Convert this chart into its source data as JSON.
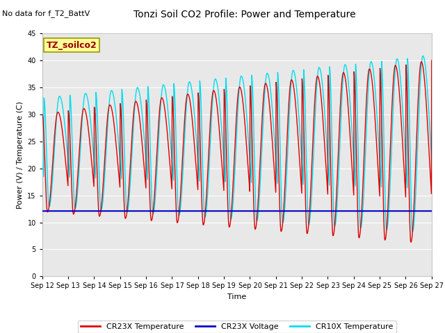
{
  "title": "Tonzi Soil CO2 Profile: Power and Temperature",
  "subtitle": "No data for f_T2_BattV",
  "ylabel": "Power (V) / Temperature (C)",
  "xlabel": "Time",
  "ylim": [
    0,
    45
  ],
  "x_tick_labels": [
    "Sep 12",
    "Sep 13",
    "Sep 14",
    "Sep 15",
    "Sep 16",
    "Sep 17",
    "Sep 18",
    "Sep 19",
    "Sep 20",
    "Sep 21",
    "Sep 22",
    "Sep 23",
    "Sep 24",
    "Sep 25",
    "Sep 26",
    "Sep 27"
  ],
  "legend_entries": [
    "CR23X Temperature",
    "CR23X Voltage",
    "CR10X Temperature"
  ],
  "annotation_box": "TZ_soilco2",
  "background_color": "#ffffff",
  "plot_bg_color": "#e8e8e8",
  "voltage_value": 12.1,
  "title_fontsize": 10,
  "subtitle_fontsize": 8,
  "ylabel_fontsize": 8,
  "xlabel_fontsize": 8,
  "tick_fontsize": 7,
  "legend_fontsize": 8,
  "grid_color": "#ffffff",
  "cr23x_color": "#dd0000",
  "voltage_color": "#0000cc",
  "cr10x_color": "#00ddee"
}
